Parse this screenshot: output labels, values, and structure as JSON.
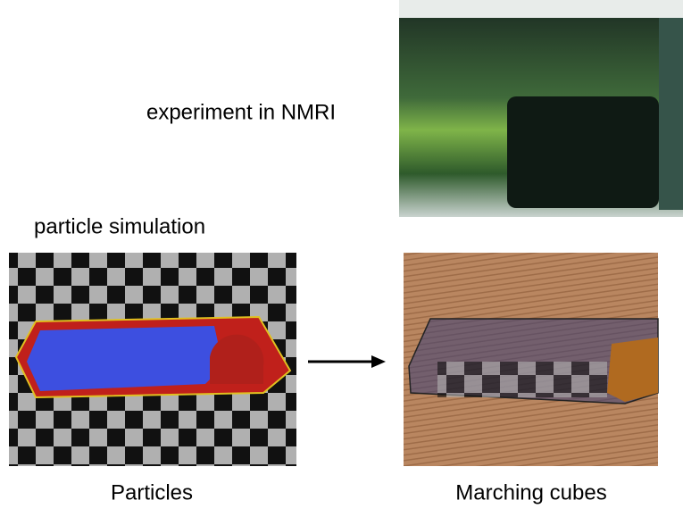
{
  "experiment": {
    "label": "experiment in NMRI"
  },
  "simulation": {
    "label": "particle simulation"
  },
  "panels": [
    {
      "caption": "Particles"
    },
    {
      "caption": "Marching cubes"
    }
  ]
}
